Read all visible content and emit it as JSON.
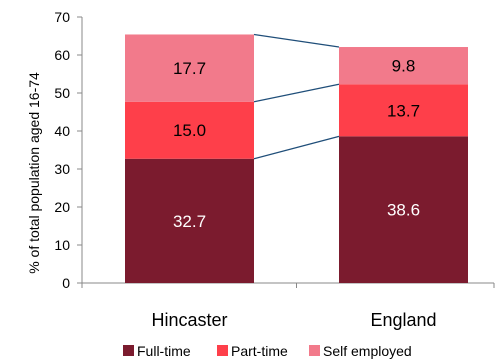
{
  "chart_data": {
    "type": "bar",
    "stacked": true,
    "categories": [
      "Hincaster",
      "England"
    ],
    "series": [
      {
        "name": "Full-time",
        "values": [
          32.7,
          38.6
        ],
        "color": "#7b1b2e",
        "label_color": "#ffffff"
      },
      {
        "name": "Part-time",
        "values": [
          15.0,
          13.7
        ],
        "color": "#fe3f4a",
        "label_color": "#000000"
      },
      {
        "name": "Self employed",
        "values": [
          17.7,
          9.8
        ],
        "color": "#f27a8b",
        "label_color": "#000000"
      }
    ],
    "ylabel": "% of total population aged 16-74",
    "xlabel": "",
    "ylim": [
      0,
      70
    ],
    "yticks": [
      0,
      10,
      20,
      30,
      40,
      50,
      60,
      70
    ],
    "connector_lines": true,
    "connector_color": "#1f4e79",
    "grid": false,
    "legend_position": "bottom"
  }
}
